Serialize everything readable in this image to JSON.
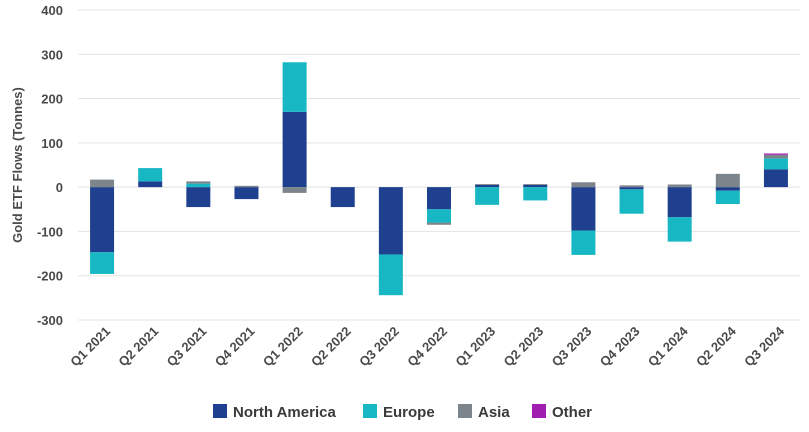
{
  "chart_data": {
    "type": "bar",
    "stacked": true,
    "ylabel": "Gold ETF Flows (Tonnes)",
    "ylim": [
      -300,
      400
    ],
    "yticks": [
      -300,
      -200,
      -100,
      0,
      100,
      200,
      300,
      400
    ],
    "grid": true,
    "legend_position": "bottom",
    "categories": [
      "Q1 2021",
      "Q2 2021",
      "Q3 2021",
      "Q4 2021",
      "Q1 2022",
      "Q2 2022",
      "Q3 2022",
      "Q4 2022",
      "Q1 2023",
      "Q2 2023",
      "Q3 2023",
      "Q4 2023",
      "Q1 2024",
      "Q2 2024",
      "Q3 2024"
    ],
    "series": [
      {
        "name": "North America",
        "color": "#1f3f8f",
        "values": [
          -147,
          13,
          -45,
          -27,
          170,
          -45,
          -152,
          -50,
          5,
          5,
          -98,
          -5,
          -68,
          -8,
          40
        ]
      },
      {
        "name": "Europe",
        "color": "#17b7c4",
        "values": [
          -49,
          30,
          8,
          0,
          112,
          0,
          -92,
          -30,
          -40,
          -30,
          -55,
          -55,
          -55,
          -30,
          25
        ]
      },
      {
        "name": "Asia",
        "color": "#7d858c",
        "values": [
          17,
          0,
          5,
          3,
          -13,
          0,
          0,
          -5,
          2,
          2,
          11,
          4,
          6,
          30,
          8
        ]
      },
      {
        "name": "Other",
        "color": "#a01fb0",
        "values": [
          0,
          0,
          0,
          0,
          0,
          0,
          0,
          0,
          0,
          0,
          0,
          0,
          0,
          0,
          3
        ]
      }
    ]
  }
}
